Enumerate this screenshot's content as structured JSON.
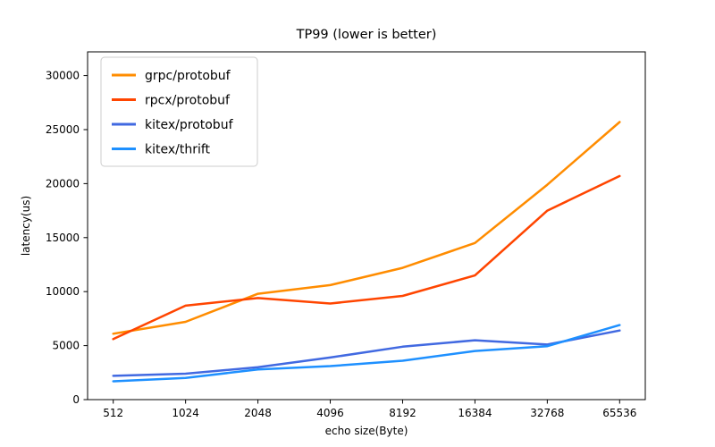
{
  "title": "TP99 (lower is better)",
  "chart_data": {
    "type": "line",
    "title": "TP99 (lower is better)",
    "xlabel": "echo size(Byte)",
    "ylabel": "latency(us)",
    "categories": [
      "512",
      "1024",
      "2048",
      "4096",
      "8192",
      "16384",
      "32768",
      "65536"
    ],
    "series": [
      {
        "name": "grpc/protobuf",
        "color": "#FF8C00",
        "values": [
          6100,
          7200,
          9800,
          10600,
          12200,
          14500,
          19900,
          25700
        ]
      },
      {
        "name": "rpcx/protobuf",
        "color": "#FF4500",
        "values": [
          5600,
          8700,
          9400,
          8900,
          9600,
          11500,
          17500,
          20700
        ]
      },
      {
        "name": "kitex/protobuf",
        "color": "#4169E1",
        "values": [
          2200,
          2400,
          3000,
          3900,
          4900,
          5500,
          5100,
          6400
        ]
      },
      {
        "name": "kitex/thrift",
        "color": "#1E90FF",
        "values": [
          1700,
          2000,
          2800,
          3100,
          3600,
          4500,
          4950,
          6900
        ]
      }
    ],
    "yticks": [
      0,
      5000,
      10000,
      15000,
      20000,
      25000,
      30000
    ],
    "ylim": [
      0,
      32200
    ],
    "grid": false,
    "legend_position": "upper-left",
    "axis_color": "#000000",
    "legend_border_color": "#cccccc"
  }
}
